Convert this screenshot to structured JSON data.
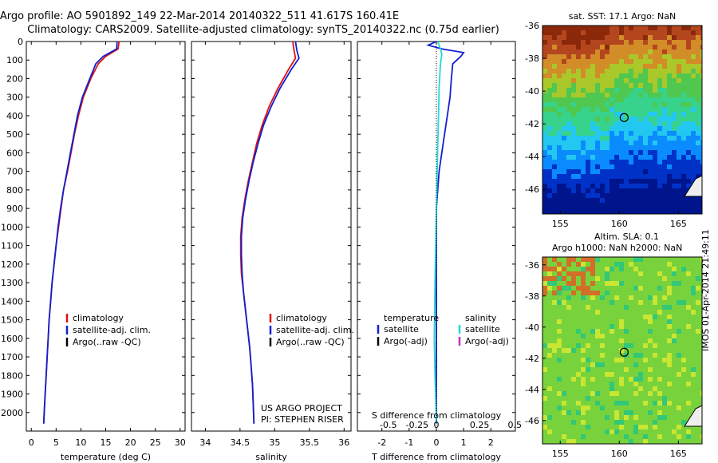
{
  "header": {
    "line1": "Argo profile: AO 5901892_149 22-Mar-2014 20140322_511 41.617S 160.41E",
    "line2": "Climatology: CARS2009. Satellite-adjusted climatology: synTS_20140322.nc (0.75d earlier)"
  },
  "colors": {
    "climatology": "#e01010",
    "satellite": "#1020d0",
    "argo": "#000000",
    "sal_satellite": "#20d8d8",
    "sal_argo": "#c030c0"
  },
  "credit": {
    "line1": "US ARGO PROJECT",
    "line2": "PI: STEPHEN RISER"
  },
  "stamp": "IMOS 01-Apr-2014 21:49:11",
  "chart_data": [
    {
      "type": "line",
      "name": "temperature",
      "xlabel": "temperature (deg C)",
      "ylabel": "",
      "xlim": [
        -1,
        31
      ],
      "ylim": [
        2100,
        0
      ],
      "xticks": [
        0,
        5,
        10,
        15,
        20,
        25,
        30
      ],
      "yticks": [
        0,
        100,
        200,
        300,
        400,
        500,
        600,
        700,
        800,
        900,
        1000,
        1100,
        1200,
        1300,
        1400,
        1500,
        1600,
        1700,
        1800,
        1900,
        2000
      ],
      "legend": [
        "climatology",
        "satellite-adj. clim.",
        "Argo(..raw -QC)"
      ],
      "series": [
        {
          "name": "climatology",
          "color": "#e01010",
          "points": [
            [
              17.7,
              0
            ],
            [
              17.5,
              40
            ],
            [
              15,
              80
            ],
            [
              13.5,
              120
            ],
            [
              12,
              200
            ],
            [
              10.5,
              300
            ],
            [
              9.5,
              400
            ],
            [
              8.7,
              500
            ],
            [
              8,
              600
            ],
            [
              7.3,
              700
            ],
            [
              6.5,
              800
            ],
            [
              6,
              900
            ],
            [
              5.5,
              1000
            ],
            [
              5,
              1100
            ],
            [
              4.6,
              1200
            ],
            [
              4.2,
              1300
            ],
            [
              3.9,
              1400
            ],
            [
              3.6,
              1500
            ],
            [
              3.4,
              1600
            ],
            [
              3.2,
              1700
            ],
            [
              3,
              1800
            ],
            [
              2.8,
              1900
            ],
            [
              2.6,
              2000
            ],
            [
              2.5,
              2060
            ]
          ]
        },
        {
          "name": "satellite-adj. clim.",
          "color": "#1020d0",
          "points": [
            [
              17.3,
              0
            ],
            [
              17.2,
              40
            ],
            [
              14.5,
              80
            ],
            [
              13,
              120
            ],
            [
              11.8,
              200
            ],
            [
              10.3,
              300
            ],
            [
              9.3,
              400
            ],
            [
              8.6,
              500
            ],
            [
              7.9,
              600
            ],
            [
              7.2,
              700
            ],
            [
              6.5,
              800
            ],
            [
              5.9,
              900
            ],
            [
              5.4,
              1000
            ],
            [
              5,
              1100
            ],
            [
              4.6,
              1200
            ],
            [
              4.2,
              1300
            ],
            [
              3.9,
              1400
            ],
            [
              3.6,
              1500
            ],
            [
              3.4,
              1600
            ],
            [
              3.2,
              1700
            ],
            [
              3,
              1800
            ],
            [
              2.8,
              1900
            ],
            [
              2.6,
              2000
            ],
            [
              2.5,
              2060
            ]
          ]
        }
      ]
    },
    {
      "type": "line",
      "name": "salinity",
      "xlabel": "salinity",
      "ylabel": "",
      "xlim": [
        33.8,
        36.1
      ],
      "ylim": [
        2100,
        0
      ],
      "xticks": [
        34,
        34.5,
        35,
        35.5,
        36
      ],
      "legend": [
        "climatology",
        "satellite-adj. clim.",
        "Argo(..raw -QC)"
      ],
      "series": [
        {
          "name": "climatology",
          "color": "#e01010",
          "points": [
            [
              35.26,
              0
            ],
            [
              35.28,
              50
            ],
            [
              35.3,
              90
            ],
            [
              35.2,
              150
            ],
            [
              35.05,
              250
            ],
            [
              34.92,
              350
            ],
            [
              34.82,
              450
            ],
            [
              34.74,
              550
            ],
            [
              34.68,
              650
            ],
            [
              34.62,
              750
            ],
            [
              34.57,
              850
            ],
            [
              34.53,
              950
            ],
            [
              34.51,
              1050
            ],
            [
              34.51,
              1150
            ],
            [
              34.52,
              1250
            ],
            [
              34.55,
              1350
            ],
            [
              34.58,
              1450
            ],
            [
              34.61,
              1550
            ],
            [
              34.64,
              1650
            ],
            [
              34.66,
              1750
            ],
            [
              34.68,
              1850
            ],
            [
              34.69,
              1950
            ],
            [
              34.7,
              2060
            ]
          ]
        },
        {
          "name": "satellite-adj. clim.",
          "color": "#1020d0",
          "points": [
            [
              35.3,
              0
            ],
            [
              35.32,
              50
            ],
            [
              35.35,
              90
            ],
            [
              35.24,
              150
            ],
            [
              35.08,
              250
            ],
            [
              34.95,
              350
            ],
            [
              34.84,
              450
            ],
            [
              34.76,
              550
            ],
            [
              34.69,
              650
            ],
            [
              34.63,
              750
            ],
            [
              34.58,
              850
            ],
            [
              34.54,
              950
            ],
            [
              34.52,
              1050
            ],
            [
              34.52,
              1150
            ],
            [
              34.53,
              1250
            ],
            [
              34.55,
              1350
            ],
            [
              34.58,
              1450
            ],
            [
              34.61,
              1550
            ],
            [
              34.64,
              1650
            ],
            [
              34.66,
              1750
            ],
            [
              34.68,
              1850
            ],
            [
              34.69,
              1950
            ],
            [
              34.7,
              2060
            ]
          ]
        }
      ]
    },
    {
      "type": "line",
      "name": "difference",
      "xlabel": "T difference from climatology",
      "xlabel_top": "S difference from climatology",
      "xlim": [
        -2.9,
        2.9
      ],
      "ylim": [
        2100,
        0
      ],
      "xticks": [
        -2,
        -1,
        0,
        1,
        2
      ],
      "xticks_top": [
        -0.5,
        -0.25,
        0,
        0.25,
        0.5
      ],
      "legend_t_title": "temperature",
      "legend_s_title": "salinity",
      "legend_t": [
        "satellite",
        "Argo(-adj)"
      ],
      "legend_s": [
        "satellite",
        "Argo(-adj)"
      ],
      "series": [
        {
          "name": "T satellite",
          "color": "#1020d0",
          "points": [
            [
              0,
              0
            ],
            [
              -0.3,
              20
            ],
            [
              0.2,
              40
            ],
            [
              1,
              60
            ],
            [
              0.9,
              80
            ],
            [
              0.6,
              120
            ],
            [
              0.55,
              200
            ],
            [
              0.5,
              300
            ],
            [
              0.4,
              400
            ],
            [
              0.3,
              500
            ],
            [
              0.2,
              600
            ],
            [
              0.1,
              700
            ],
            [
              0.05,
              800
            ],
            [
              0,
              900
            ],
            [
              0,
              1100
            ],
            [
              0,
              1400
            ],
            [
              0,
              2060
            ]
          ]
        },
        {
          "name": "S satellite",
          "color": "#20d8d8",
          "points": [
            [
              0.05,
              0
            ],
            [
              0.15,
              40
            ],
            [
              0.2,
              70
            ],
            [
              0.15,
              120
            ],
            [
              0.1,
              250
            ],
            [
              0.08,
              400
            ],
            [
              0.05,
              550
            ],
            [
              0.03,
              700
            ],
            [
              0,
              900
            ],
            [
              -0.05,
              1300
            ],
            [
              -0.08,
              1600
            ],
            [
              -0.05,
              1800
            ],
            [
              0,
              2060
            ]
          ]
        }
      ]
    },
    {
      "type": "heatmap",
      "name": "sst map",
      "title": "sat. SST: 17.1 Argo: NaN",
      "xticks": [
        155,
        160,
        165
      ],
      "yticks": [
        -36,
        -38,
        -40,
        -42,
        -44,
        -46
      ],
      "xlim": [
        153.5,
        167
      ],
      "ylim": [
        -36,
        -47.5
      ]
    },
    {
      "type": "heatmap",
      "name": "sla map",
      "title": "Altim. SLA: 0.1",
      "title2": "Argo h1000: NaN h2000: NaN",
      "xticks": [
        155,
        160,
        165
      ],
      "yticks": [
        -36,
        -38,
        -40,
        -42,
        -44,
        -46
      ],
      "xlim": [
        153.5,
        167
      ],
      "ylim": [
        -35.5,
        -47.5
      ]
    }
  ]
}
